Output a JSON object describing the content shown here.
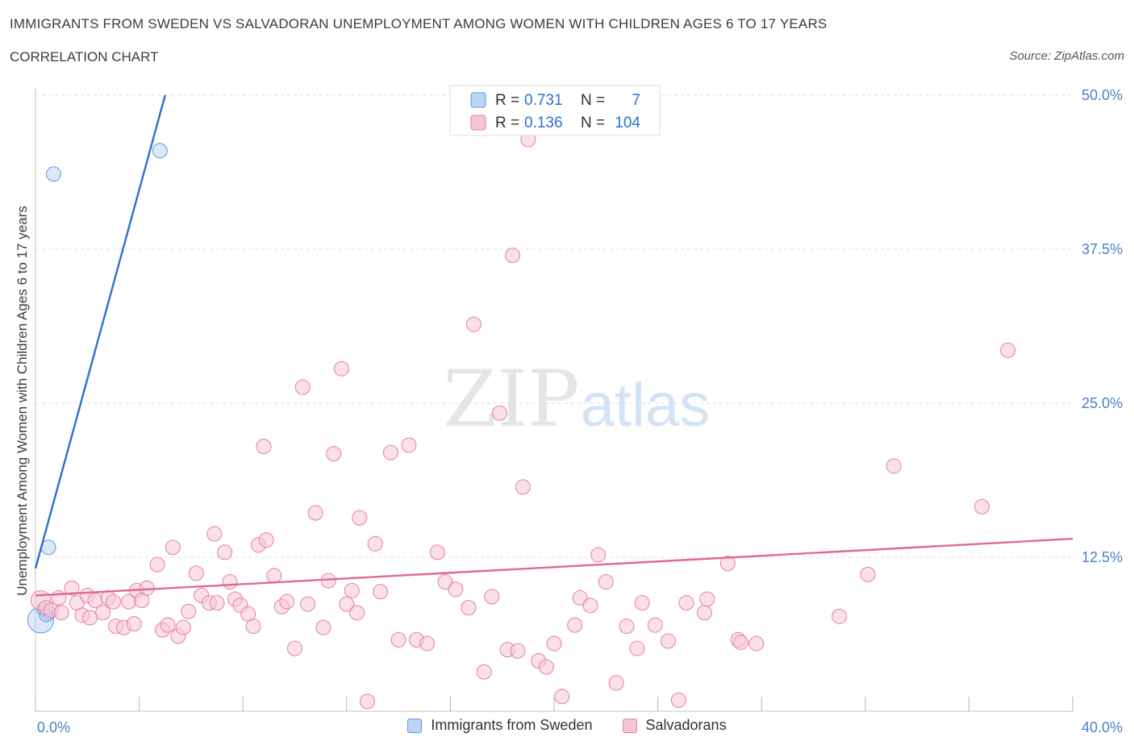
{
  "header": {
    "title": "IMMIGRANTS FROM SWEDEN VS SALVADORAN UNEMPLOYMENT AMONG WOMEN WITH CHILDREN AGES 6 TO 17 YEARS",
    "subtitle": "CORRELATION CHART",
    "source": "Source: ZipAtlas.com"
  },
  "watermark": {
    "zip": "ZIP",
    "atlas": "atlas"
  },
  "colors": {
    "blue": "#5b9ae0",
    "blue_fill": "#bcd5f3",
    "blue_line": "#2f6fcf",
    "pink": "#e67fa2",
    "pink_fill": "#f7c6d6",
    "pink_line": "#e0698f",
    "tick_label": "#4a7fc8"
  },
  "chart_data": {
    "type": "scatter",
    "xlabel": "",
    "ylabel": "Unemployment Among Women with Children Ages 6 to 17 years",
    "xlim": [
      0,
      40
    ],
    "ylim": [
      0,
      50
    ],
    "x_tick_labels": [
      "0.0%",
      "40.0%"
    ],
    "y_ticks": [
      12.5,
      25.0,
      37.5,
      50.0
    ],
    "y_tick_labels": [
      "12.5%",
      "25.0%",
      "37.5%",
      "50.0%"
    ],
    "grid": true,
    "legend_stats": [
      {
        "r_label": "R =",
        "r": "0.731",
        "n_label": "N =",
        "n": "7"
      },
      {
        "r_label": "R =",
        "r": "0.136",
        "n_label": "N =",
        "n": "104"
      }
    ],
    "series": [
      {
        "name": "Immigrants from Sweden",
        "color": "blue",
        "trend": {
          "x0": 0.0,
          "y0": 11.6,
          "x1": 5.0,
          "y1": 50.0
        },
        "points": [
          [
            0.2,
            7.4,
            16
          ],
          [
            0.5,
            8.0,
            9
          ],
          [
            0.5,
            13.3,
            9
          ],
          [
            0.7,
            43.6,
            9
          ],
          [
            4.8,
            45.5,
            9
          ],
          [
            0.3,
            8.3,
            8
          ],
          [
            0.4,
            7.8,
            8
          ]
        ]
      },
      {
        "name": "Salvadorans",
        "color": "pink",
        "trend": {
          "x0": 0.0,
          "y0": 9.4,
          "x1": 40.0,
          "y1": 14.0
        },
        "points": [
          [
            0.2,
            9.0,
            12
          ],
          [
            0.4,
            8.4,
            9
          ],
          [
            0.6,
            8.2,
            9
          ],
          [
            0.9,
            9.2,
            9
          ],
          [
            1.0,
            8.0,
            9
          ],
          [
            1.4,
            10.0,
            9
          ],
          [
            1.6,
            8.8,
            9
          ],
          [
            1.8,
            7.8,
            9
          ],
          [
            2.0,
            9.4,
            9
          ],
          [
            2.1,
            7.6,
            9
          ],
          [
            2.3,
            9.0,
            9
          ],
          [
            2.6,
            8.0,
            9
          ],
          [
            2.8,
            9.2,
            9
          ],
          [
            3.0,
            8.9,
            9
          ],
          [
            3.1,
            6.9,
            9
          ],
          [
            3.4,
            6.8,
            9
          ],
          [
            3.6,
            8.9,
            9
          ],
          [
            3.8,
            7.1,
            9
          ],
          [
            3.9,
            9.8,
            9
          ],
          [
            4.1,
            9.0,
            9
          ],
          [
            4.3,
            10.0,
            9
          ],
          [
            4.7,
            11.9,
            9
          ],
          [
            4.9,
            6.6,
            9
          ],
          [
            5.1,
            7.0,
            9
          ],
          [
            5.3,
            13.3,
            9
          ],
          [
            5.5,
            6.1,
            9
          ],
          [
            5.7,
            6.8,
            9
          ],
          [
            5.9,
            8.1,
            9
          ],
          [
            6.2,
            11.2,
            9
          ],
          [
            6.4,
            9.4,
            9
          ],
          [
            6.7,
            8.8,
            9
          ],
          [
            6.9,
            14.4,
            9
          ],
          [
            7.0,
            8.8,
            9
          ],
          [
            7.3,
            12.9,
            9
          ],
          [
            7.5,
            10.5,
            9
          ],
          [
            7.7,
            9.1,
            9
          ],
          [
            7.9,
            8.6,
            9
          ],
          [
            8.2,
            7.9,
            9
          ],
          [
            8.4,
            6.9,
            9
          ],
          [
            8.6,
            13.5,
            9
          ],
          [
            8.8,
            21.5,
            9
          ],
          [
            8.9,
            13.9,
            9
          ],
          [
            9.2,
            11.0,
            9
          ],
          [
            9.5,
            8.5,
            9
          ],
          [
            9.7,
            8.9,
            9
          ],
          [
            10.0,
            5.1,
            9
          ],
          [
            10.3,
            26.3,
            9
          ],
          [
            10.5,
            8.7,
            9
          ],
          [
            10.8,
            16.1,
            9
          ],
          [
            11.1,
            6.8,
            9
          ],
          [
            11.3,
            10.6,
            9
          ],
          [
            11.5,
            20.9,
            9
          ],
          [
            11.8,
            27.8,
            9
          ],
          [
            12.0,
            8.7,
            9
          ],
          [
            12.2,
            9.8,
            9
          ],
          [
            12.4,
            8.0,
            9
          ],
          [
            12.5,
            15.7,
            9
          ],
          [
            12.8,
            0.8,
            9
          ],
          [
            13.1,
            13.6,
            9
          ],
          [
            13.3,
            9.7,
            9
          ],
          [
            13.7,
            21.0,
            9
          ],
          [
            14.0,
            5.8,
            9
          ],
          [
            14.4,
            21.6,
            9
          ],
          [
            14.7,
            5.8,
            9
          ],
          [
            15.1,
            5.5,
            9
          ],
          [
            15.5,
            12.9,
            9
          ],
          [
            15.8,
            10.5,
            9
          ],
          [
            16.2,
            9.9,
            9
          ],
          [
            16.7,
            8.4,
            9
          ],
          [
            16.9,
            31.4,
            9
          ],
          [
            17.3,
            3.2,
            9
          ],
          [
            17.6,
            9.3,
            9
          ],
          [
            17.9,
            24.2,
            9
          ],
          [
            18.2,
            5.0,
            9
          ],
          [
            18.4,
            37.0,
            9
          ],
          [
            18.6,
            4.9,
            9
          ],
          [
            18.8,
            18.2,
            9
          ],
          [
            19.0,
            46.4,
            9
          ],
          [
            19.4,
            4.1,
            9
          ],
          [
            19.7,
            3.6,
            9
          ],
          [
            20.0,
            5.5,
            9
          ],
          [
            20.3,
            1.2,
            9
          ],
          [
            20.8,
            7.0,
            9
          ],
          [
            21.0,
            9.2,
            9
          ],
          [
            21.4,
            8.6,
            9
          ],
          [
            21.7,
            12.7,
            9
          ],
          [
            22.0,
            10.5,
            9
          ],
          [
            22.4,
            2.3,
            9
          ],
          [
            22.8,
            6.9,
            9
          ],
          [
            23.2,
            5.1,
            9
          ],
          [
            23.4,
            8.8,
            9
          ],
          [
            23.9,
            7.0,
            9
          ],
          [
            24.4,
            5.7,
            9
          ],
          [
            24.8,
            0.9,
            9
          ],
          [
            25.1,
            8.8,
            9
          ],
          [
            25.8,
            8.0,
            9
          ],
          [
            25.9,
            9.1,
            9
          ],
          [
            26.7,
            12.0,
            9
          ],
          [
            27.1,
            5.8,
            9
          ],
          [
            27.2,
            5.6,
            9
          ],
          [
            27.8,
            5.5,
            9
          ],
          [
            31.0,
            7.7,
            9
          ],
          [
            32.1,
            11.1,
            9
          ],
          [
            33.1,
            19.9,
            9
          ],
          [
            36.5,
            16.6,
            9
          ],
          [
            37.5,
            29.3,
            9
          ]
        ]
      }
    ]
  },
  "legend": {
    "items": [
      "Immigrants from Sweden",
      "Salvadorans"
    ]
  }
}
